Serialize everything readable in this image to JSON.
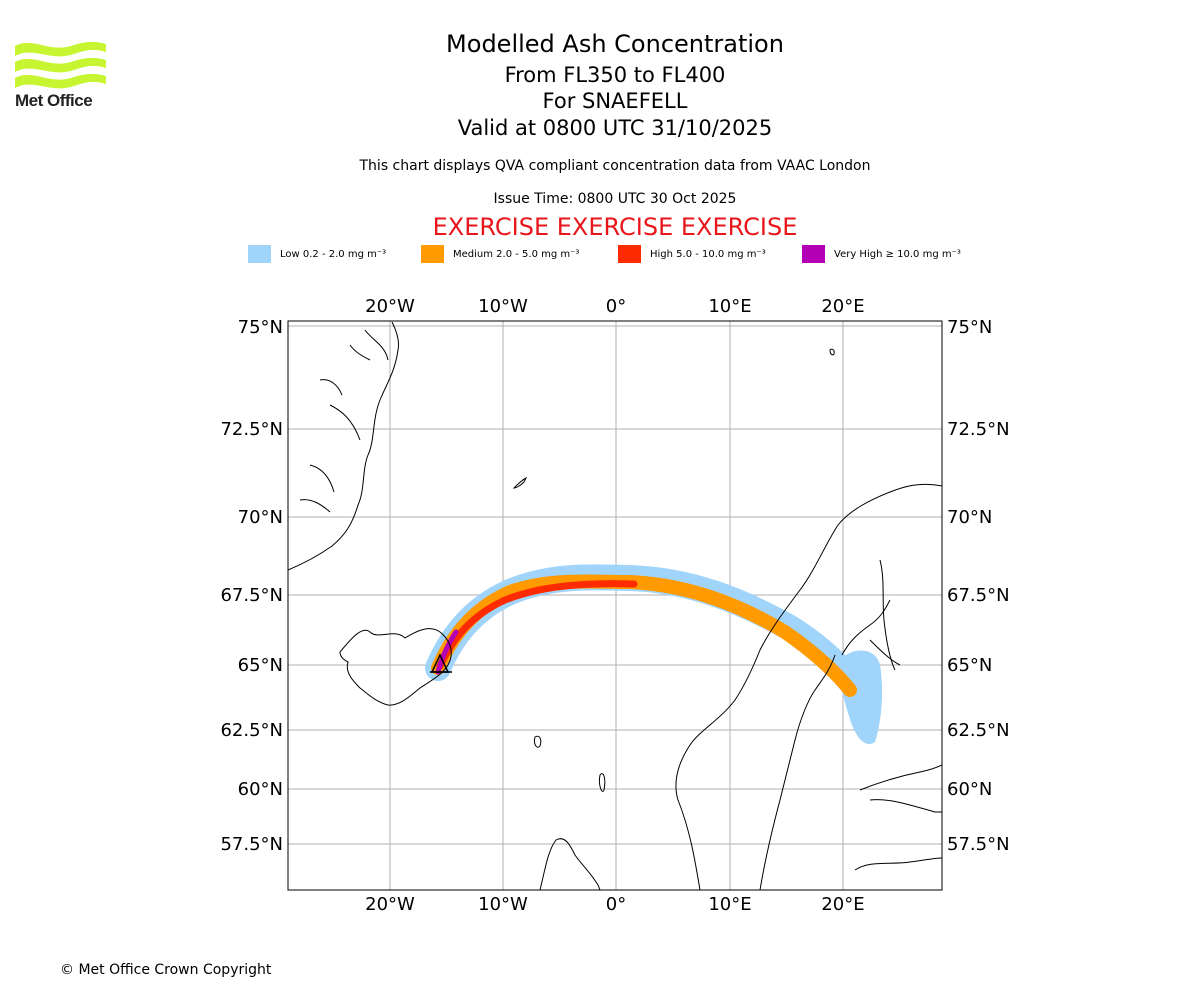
{
  "header": {
    "title": "Modelled Ash Concentration",
    "flight_levels": "From FL350 to FL400",
    "volcano": "For SNAEFELL",
    "valid_time": "Valid at 0800 UTC 31/10/2025",
    "compliance_note": "This chart displays QVA compliant concentration data from VAAC London",
    "issue_time": "Issue Time: 0800 UTC 30 Oct 2025",
    "exercise_banner": "EXERCISE EXERCISE EXERCISE"
  },
  "logo": {
    "text": "Met Office",
    "color": "#c8f531"
  },
  "legend": {
    "items": [
      {
        "label": "Low 0.2 - 2.0 mg m⁻³",
        "color": "#a0d4fa"
      },
      {
        "label": "Medium 2.0 - 5.0 mg m⁻³",
        "color": "#ff9a00"
      },
      {
        "label": "High 5.0 - 10.0 mg m⁻³",
        "color": "#ff2b00"
      },
      {
        "label": "Very High  ≥  10.0 mg m⁻³",
        "color": "#b400b4"
      }
    ]
  },
  "map": {
    "lon_labels": [
      "20°W",
      "10°W",
      "0°",
      "10°E",
      "20°E"
    ],
    "lat_labels": [
      "75°N",
      "72.5°N",
      "70°N",
      "67.5°N",
      "65°N",
      "62.5°N",
      "60°N",
      "57.5°N"
    ],
    "gridline_color": "#b0b0b0",
    "volcano_marker": "Snaefell"
  },
  "footer": {
    "copyright": "© Met Office Crown Copyright"
  }
}
